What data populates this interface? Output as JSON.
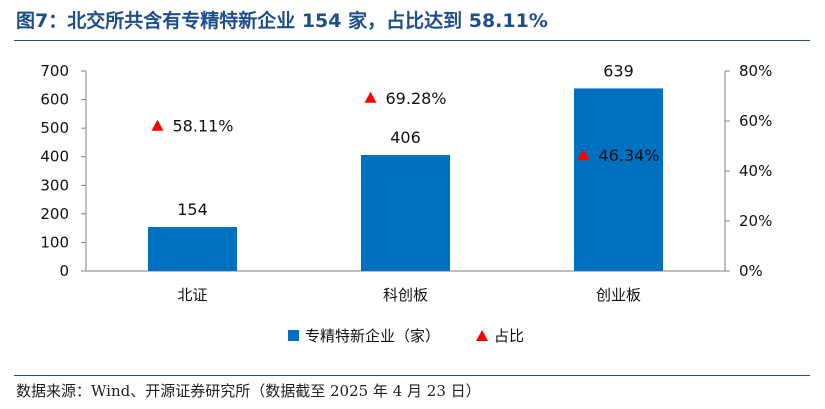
{
  "title": "图7：北交所共含有专精特新企业 154 家，占比达到 58.11%",
  "source": "数据来源：Wind、开源证券研究所（数据截至 2025 年 4 月 23 日）",
  "colors": {
    "bar": "#0070c0",
    "marker": "#ff0000",
    "title": "#1f4e8c"
  },
  "chart_data": {
    "type": "bar",
    "categories": [
      "北证",
      "科创板",
      "创业板"
    ],
    "series": [
      {
        "name": "专精特新企业（家）",
        "type": "bar",
        "axis": "left",
        "values": [
          154,
          406,
          639
        ],
        "labels": [
          "154",
          "406",
          "639"
        ]
      },
      {
        "name": "占比",
        "type": "scatter",
        "marker": "triangle",
        "axis": "right",
        "values": [
          58.11,
          69.28,
          46.34
        ],
        "labels": [
          "58.11%",
          "69.28%",
          "46.34%"
        ]
      }
    ],
    "y_left": {
      "min": 0,
      "max": 700,
      "ticks": [
        "0",
        "100",
        "200",
        "300",
        "400",
        "500",
        "600",
        "700"
      ]
    },
    "y_right": {
      "min": 0,
      "max": 80,
      "ticks": [
        "0%",
        "20%",
        "40%",
        "60%",
        "80%"
      ]
    },
    "grid": false,
    "legend_position": "bottom"
  }
}
